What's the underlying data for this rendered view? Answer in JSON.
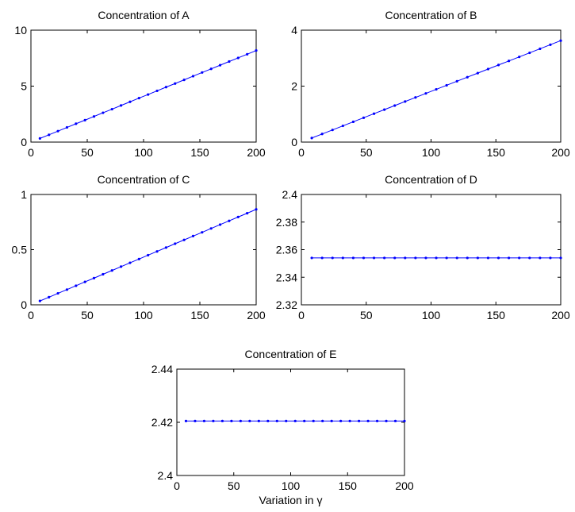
{
  "chart_data": [
    {
      "type": "line",
      "title": "Concentration of A",
      "xlabel": "",
      "ylabel": "",
      "xlim": [
        0,
        200
      ],
      "ylim": [
        0,
        10
      ],
      "xticks": [
        "0",
        "50",
        "100",
        "150",
        "200"
      ],
      "yticks": [
        "0",
        "5",
        "10"
      ],
      "grid": false,
      "series": [
        {
          "color": "#0000ff",
          "x": [
            8,
            16,
            24,
            32,
            40,
            48,
            56,
            64,
            72,
            80,
            88,
            96,
            104,
            112,
            120,
            128,
            136,
            144,
            152,
            160,
            168,
            176,
            184,
            192,
            200
          ],
          "y": [
            0.33,
            0.65,
            0.98,
            1.31,
            1.64,
            1.96,
            2.29,
            2.62,
            2.94,
            3.27,
            3.6,
            3.93,
            4.25,
            4.58,
            4.91,
            5.23,
            5.56,
            5.89,
            6.22,
            6.54,
            6.87,
            7.2,
            7.52,
            7.85,
            8.18
          ]
        }
      ]
    },
    {
      "type": "line",
      "title": "Concentration of B",
      "xlabel": "",
      "ylabel": "",
      "xlim": [
        0,
        200
      ],
      "ylim": [
        0,
        4
      ],
      "xticks": [
        "0",
        "50",
        "100",
        "150",
        "200"
      ],
      "yticks": [
        "0",
        "2",
        "4"
      ],
      "grid": false,
      "series": [
        {
          "color": "#0000ff",
          "x": [
            8,
            16,
            24,
            32,
            40,
            48,
            56,
            64,
            72,
            80,
            88,
            96,
            104,
            112,
            120,
            128,
            136,
            144,
            152,
            160,
            168,
            176,
            184,
            192,
            200
          ],
          "y": [
            0.145,
            0.29,
            0.435,
            0.58,
            0.725,
            0.87,
            1.015,
            1.16,
            1.305,
            1.45,
            1.595,
            1.74,
            1.885,
            2.03,
            2.175,
            2.32,
            2.465,
            2.61,
            2.755,
            2.9,
            3.045,
            3.19,
            3.335,
            3.48,
            3.625
          ]
        }
      ]
    },
    {
      "type": "line",
      "title": "Concentration of C",
      "xlabel": "",
      "ylabel": "",
      "xlim": [
        0,
        200
      ],
      "ylim": [
        0,
        1
      ],
      "xticks": [
        "0",
        "50",
        "100",
        "150",
        "200"
      ],
      "yticks": [
        "0",
        "0.5",
        "1"
      ],
      "grid": false,
      "series": [
        {
          "color": "#0000ff",
          "x": [
            8,
            16,
            24,
            32,
            40,
            48,
            56,
            64,
            72,
            80,
            88,
            96,
            104,
            112,
            120,
            128,
            136,
            144,
            152,
            160,
            168,
            176,
            184,
            192,
            200
          ],
          "y": [
            0.035,
            0.069,
            0.104,
            0.138,
            0.173,
            0.208,
            0.242,
            0.277,
            0.311,
            0.346,
            0.381,
            0.415,
            0.45,
            0.484,
            0.519,
            0.554,
            0.588,
            0.623,
            0.657,
            0.692,
            0.727,
            0.761,
            0.796,
            0.83,
            0.865
          ]
        }
      ]
    },
    {
      "type": "line",
      "title": "Concentration of D",
      "xlabel": "",
      "ylabel": "",
      "xlim": [
        0,
        200
      ],
      "ylim": [
        2.32,
        2.4
      ],
      "xticks": [
        "0",
        "50",
        "100",
        "150",
        "200"
      ],
      "yticks": [
        "2.32",
        "2.34",
        "2.36",
        "2.38",
        "2.4"
      ],
      "grid": false,
      "series": [
        {
          "color": "#0000ff",
          "x": [
            8,
            16,
            24,
            32,
            40,
            48,
            56,
            64,
            72,
            80,
            88,
            96,
            104,
            112,
            120,
            128,
            136,
            144,
            152,
            160,
            168,
            176,
            184,
            192,
            200
          ],
          "y": [
            2.354,
            2.354,
            2.354,
            2.354,
            2.354,
            2.354,
            2.354,
            2.354,
            2.354,
            2.354,
            2.354,
            2.354,
            2.354,
            2.354,
            2.354,
            2.354,
            2.354,
            2.354,
            2.354,
            2.354,
            2.354,
            2.354,
            2.354,
            2.354,
            2.354
          ]
        }
      ]
    },
    {
      "type": "line",
      "title": "Concentration of E",
      "xlabel": "Variation in γ",
      "ylabel": "",
      "xlim": [
        0,
        200
      ],
      "ylim": [
        2.4,
        2.44
      ],
      "xticks": [
        "0",
        "50",
        "100",
        "150",
        "200"
      ],
      "yticks": [
        "2.4",
        "2.42",
        "2.44"
      ],
      "grid": false,
      "series": [
        {
          "color": "#0000ff",
          "x": [
            8,
            16,
            24,
            32,
            40,
            48,
            56,
            64,
            72,
            80,
            88,
            96,
            104,
            112,
            120,
            128,
            136,
            144,
            152,
            160,
            168,
            176,
            184,
            192,
            200
          ],
          "y": [
            2.4205,
            2.4205,
            2.4205,
            2.4205,
            2.4205,
            2.4205,
            2.4205,
            2.4205,
            2.4205,
            2.4205,
            2.4205,
            2.4205,
            2.4205,
            2.4205,
            2.4205,
            2.4205,
            2.4205,
            2.4205,
            2.4205,
            2.4205,
            2.4205,
            2.4205,
            2.4205,
            2.4205,
            2.4205
          ]
        }
      ]
    }
  ]
}
